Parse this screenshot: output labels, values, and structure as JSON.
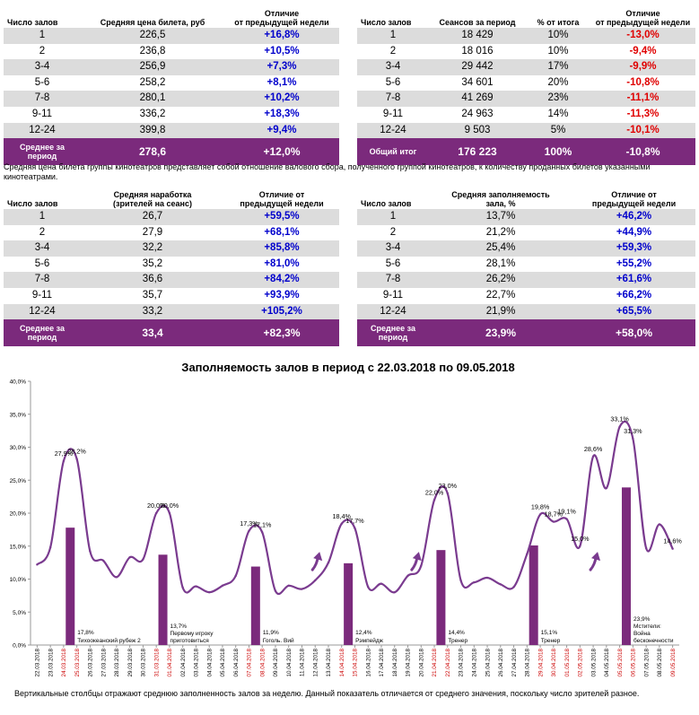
{
  "tables": [
    {
      "columns": [
        "Число залов",
        "Средняя цена билета, руб",
        "Отличие\nот предыдущей недели"
      ],
      "rows": [
        [
          "1",
          "226,5",
          "+16,8%"
        ],
        [
          "2",
          "236,8",
          "+10,5%"
        ],
        [
          "3-4",
          "256,9",
          "+7,3%"
        ],
        [
          "5-6",
          "258,2",
          "+8,1%"
        ],
        [
          "7-8",
          "280,1",
          "+10,2%"
        ],
        [
          "9-11",
          "336,2",
          "+18,3%"
        ],
        [
          "12-24",
          "399,8",
          "+9,4%"
        ]
      ],
      "footer": [
        "Среднее за\nпериод",
        "278,6",
        "+12,0%"
      ]
    },
    {
      "columns": [
        "Число залов",
        "Сеансов за период",
        "% от итога",
        "Отличие\nот предыдущей недели"
      ],
      "rows": [
        [
          "1",
          "18 429",
          "10%",
          "-13,0%"
        ],
        [
          "2",
          "18 016",
          "10%",
          "-9,4%"
        ],
        [
          "3-4",
          "29 442",
          "17%",
          "-9,9%"
        ],
        [
          "5-6",
          "34 601",
          "20%",
          "-10,8%"
        ],
        [
          "7-8",
          "41 269",
          "23%",
          "-11,1%"
        ],
        [
          "9-11",
          "24 963",
          "14%",
          "-11,3%"
        ],
        [
          "12-24",
          "9 503",
          "5%",
          "-10,1%"
        ]
      ],
      "footer": [
        "Общий итог",
        "176 223",
        "100%",
        "-10,8%"
      ]
    },
    {
      "columns": [
        "Число залов",
        "Средняя наработка\n(зрителей на сеанс)",
        "Отличие от\nпредыдущей недели"
      ],
      "rows": [
        [
          "1",
          "26,7",
          "+59,5%"
        ],
        [
          "2",
          "27,9",
          "+68,1%"
        ],
        [
          "3-4",
          "32,2",
          "+85,8%"
        ],
        [
          "5-6",
          "35,2",
          "+81,0%"
        ],
        [
          "7-8",
          "36,6",
          "+84,2%"
        ],
        [
          "9-11",
          "35,7",
          "+93,9%"
        ],
        [
          "12-24",
          "33,2",
          "+105,2%"
        ]
      ],
      "footer": [
        "Среднее за\nпериод",
        "33,4",
        "+82,3%"
      ]
    },
    {
      "columns": [
        "Число залов",
        "Средняя заполняемость\nзала, %",
        "Отличие от\nпредыдущей недели"
      ],
      "rows": [
        [
          "1",
          "13,7%",
          "+46,2%"
        ],
        [
          "2",
          "21,2%",
          "+44,9%"
        ],
        [
          "3-4",
          "25,4%",
          "+59,3%"
        ],
        [
          "5-6",
          "28,1%",
          "+55,2%"
        ],
        [
          "7-8",
          "26,2%",
          "+61,6%"
        ],
        [
          "9-11",
          "22,7%",
          "+66,2%"
        ],
        [
          "12-24",
          "21,9%",
          "+65,5%"
        ]
      ],
      "footer": [
        "Среднее за\nпериод",
        "23,9%",
        "+58,0%"
      ]
    }
  ],
  "note_price": "Средняя цена билета группы кинотеатров представляет собой отношение валового сбора, полученного группой кинотеатров, к количеству проданных билетов указанными кинотеатрами.",
  "note_bottom": "Вертикальные столбцы отражают среднюю заполненность залов за неделю. Данный показатель отличается от среднего значения, поскольку число зрителей разное.",
  "colors": {
    "header_purple": "#7b2a7c",
    "line": "#7a3b8f",
    "bar": "#7b2a7c",
    "positive": "#0000cc",
    "negative": "#e00000",
    "weekend_date": "#cc0000"
  },
  "chart_data": {
    "type": "line",
    "title": "Заполняемость залов в период с 22.03.2018 по 09.05.2018",
    "ylim": [
      0,
      40
    ],
    "yticks": [
      "0,0%",
      "5,0%",
      "10,0%",
      "15,0%",
      "20,0%",
      "25,0%",
      "30,0%",
      "35,0%",
      "40,0%"
    ],
    "grid": false,
    "x": [
      "22.03.2018",
      "23.03.2018",
      "24.03.2018",
      "25.03.2018",
      "26.03.2018",
      "27.03.2018",
      "28.03.2018",
      "29.03.2018",
      "30.03.2018",
      "31.03.2018",
      "01.04.2018",
      "02.04.2018",
      "03.04.2018",
      "04.04.2018",
      "05.04.2018",
      "06.04.2018",
      "07.04.2018",
      "08.04.2018",
      "09.04.2018",
      "10.04.2018",
      "11.04.2018",
      "12.04.2018",
      "13.04.2018",
      "14.04.2018",
      "15.04.2018",
      "16.04.2018",
      "17.04.2018",
      "18.04.2018",
      "19.04.2018",
      "20.04.2018",
      "21.04.2018",
      "22.04.2018",
      "23.04.2018",
      "24.04.2018",
      "25.04.2018",
      "26.04.2018",
      "27.04.2018",
      "28.04.2018",
      "29.04.2018",
      "30.04.2018",
      "01.05.2018",
      "02.05.2018",
      "03.05.2018",
      "04.05.2018",
      "05.05.2018",
      "06.05.2018",
      "07.05.2018",
      "08.05.2018",
      "09.05.2018"
    ],
    "weekend": [
      false,
      false,
      true,
      true,
      false,
      false,
      false,
      false,
      false,
      true,
      true,
      false,
      false,
      false,
      false,
      false,
      true,
      true,
      false,
      false,
      false,
      false,
      false,
      true,
      true,
      false,
      false,
      false,
      false,
      false,
      true,
      true,
      false,
      false,
      false,
      false,
      false,
      false,
      true,
      true,
      true,
      true,
      false,
      false,
      true,
      true,
      false,
      false,
      true
    ],
    "values": [
      12.2,
      14.8,
      27.9,
      28.2,
      14.2,
      12.8,
      10.3,
      13.3,
      13.0,
      20.0,
      20.0,
      8.7,
      8.9,
      8.0,
      9.0,
      10.5,
      17.3,
      17.1,
      8.2,
      9.0,
      8.5,
      9.8,
      12.5,
      18.4,
      17.7,
      8.8,
      9.3,
      8.0,
      10.5,
      12.0,
      22.0,
      23.0,
      9.8,
      9.5,
      10.2,
      9.2,
      8.8,
      13.8,
      19.8,
      18.7,
      19.1,
      15.0,
      28.6,
      23.8,
      33.1,
      31.3,
      14.7,
      18.3,
      14.6
    ],
    "point_labels": [
      {
        "i": 2,
        "text": "27,9%"
      },
      {
        "i": 3,
        "text": "28,2%"
      },
      {
        "i": 9,
        "text": "20,0%"
      },
      {
        "i": 10,
        "text": "20,0%"
      },
      {
        "i": 16,
        "text": "17,3%"
      },
      {
        "i": 17,
        "text": "17,1%"
      },
      {
        "i": 23,
        "text": "18,4%"
      },
      {
        "i": 24,
        "text": "17,7%"
      },
      {
        "i": 30,
        "text": "22,0%"
      },
      {
        "i": 31,
        "text": "23,0%"
      },
      {
        "i": 38,
        "text": "19,8%"
      },
      {
        "i": 39,
        "text": "18,7%"
      },
      {
        "i": 40,
        "text": "19,1%"
      },
      {
        "i": 41,
        "text": "15,0%"
      },
      {
        "i": 42,
        "text": "28,6%"
      },
      {
        "i": 44,
        "text": "33,1%"
      },
      {
        "i": 45,
        "text": "31,3%"
      },
      {
        "i": 48,
        "text": "14,6%"
      }
    ],
    "bars": [
      {
        "i": 2.5,
        "value": 17.8,
        "label": "17,8%",
        "film": "Тихоокеанский рубеж 2"
      },
      {
        "i": 9.5,
        "value": 13.7,
        "label": "13,7%",
        "film": "Первому игроку\nприготовиться"
      },
      {
        "i": 16.5,
        "value": 11.9,
        "label": "11,9%",
        "film": "Гоголь. Вий"
      },
      {
        "i": 23.5,
        "value": 12.4,
        "label": "12,4%",
        "film": "Рэмпейдж"
      },
      {
        "i": 30.5,
        "value": 14.4,
        "label": "14,4%",
        "film": "Тренер"
      },
      {
        "i": 37.5,
        "value": 15.1,
        "label": "15,1%",
        "film": "Тренер"
      },
      {
        "i": 44.5,
        "value": 23.9,
        "label": "23,9%",
        "film": "Мстители:\nВойна\nбесконечности"
      }
    ],
    "arrows": [
      21.2,
      28.7,
      42.2
    ]
  }
}
